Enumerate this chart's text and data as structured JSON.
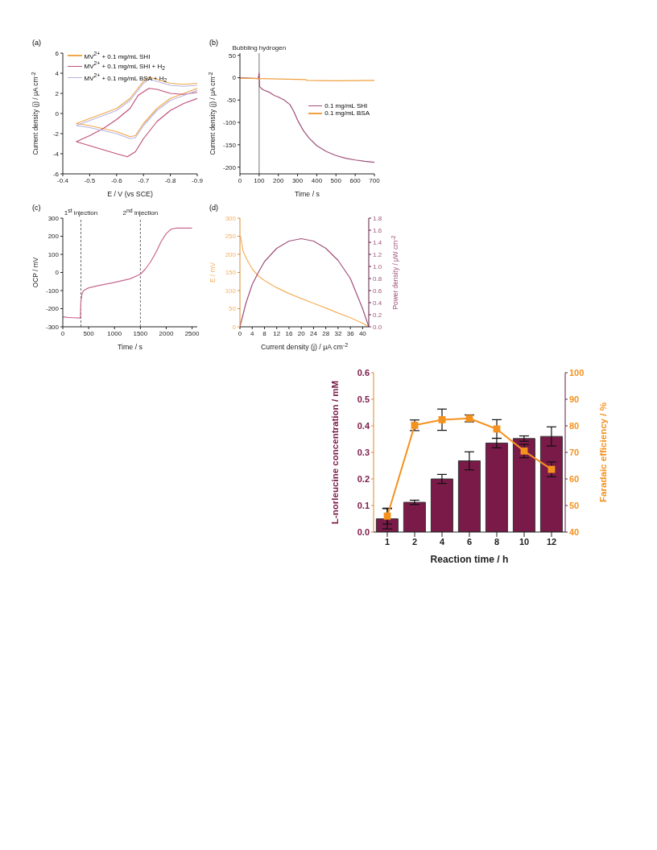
{
  "chart_data": [
    {
      "type": "line",
      "title": "(a)",
      "xlabel": "E / V (vs SCE)",
      "ylabel": "Current density (j) / μA cm$^{-2}$",
      "xlim": [
        -0.4,
        -0.9
      ],
      "xticks": [
        -0.4,
        -0.5,
        -0.6,
        -0.7,
        -0.8,
        -0.9
      ],
      "ylim": [
        -6,
        6
      ],
      "yticks": [
        -6,
        -4,
        -2,
        0,
        2,
        4,
        6
      ],
      "legend": "top left",
      "marker": "none",
      "line_style": "solid",
      "series": [
        {
          "name": "MV$^{2+}$ + 0.1 mg/mL SHI",
          "color": "#f0a848",
          "x": [
            -0.45,
            -0.5,
            -0.55,
            -0.6,
            -0.65,
            -0.7,
            -0.72,
            -0.75,
            -0.8,
            -0.85,
            -0.9
          ],
          "values": [
            -1.0,
            -0.5,
            0,
            0.5,
            1.5,
            3.2,
            3.6,
            3.4,
            3.0,
            2.9,
            3.0
          ]
        },
        {
          "color": "#f0a848",
          "x": [
            -0.9,
            -0.85,
            -0.8,
            -0.75,
            -0.7,
            -0.67,
            -0.65,
            -0.6,
            -0.55,
            -0.5,
            -0.45
          ],
          "values": [
            2.5,
            2.0,
            1.5,
            0.5,
            -1.0,
            -2.2,
            -2.3,
            -1.8,
            -1.5,
            -1.2,
            -1.0
          ]
        },
        {
          "name": "MV$^{2+}$ + 0.1 mg/mL SHI + H$_{2}$",
          "color": "#c0507a",
          "x": [
            -0.45,
            -0.5,
            -0.55,
            -0.6,
            -0.65,
            -0.68,
            -0.72,
            -0.75,
            -0.8,
            -0.85,
            -0.9
          ],
          "values": [
            -2.8,
            -2.2,
            -1.5,
            -0.6,
            0.5,
            1.8,
            2.5,
            2.4,
            2.0,
            1.9,
            2.1
          ]
        },
        {
          "color": "#c0507a",
          "x": [
            -0.9,
            -0.85,
            -0.8,
            -0.75,
            -0.7,
            -0.67,
            -0.64,
            -0.6,
            -0.55,
            -0.5,
            -0.45
          ],
          "values": [
            1.5,
            1.0,
            0.3,
            -0.8,
            -2.5,
            -3.8,
            -4.3,
            -4.0,
            -3.6,
            -3.2,
            -2.8
          ]
        },
        {
          "name": "MV$^{2+}$ + 0.1 mg/mL BSA + H$_{2}$",
          "color": "#b8b4e0",
          "x": [
            -0.45,
            -0.5,
            -0.55,
            -0.6,
            -0.65,
            -0.7,
            -0.72,
            -0.75,
            -0.8,
            -0.85,
            -0.9
          ],
          "values": [
            -1.2,
            -0.7,
            -0.2,
            0.3,
            1.3,
            3.0,
            3.4,
            3.2,
            2.8,
            2.7,
            2.8
          ]
        },
        {
          "color": "#b8b4e0",
          "x": [
            -0.9,
            -0.85,
            -0.8,
            -0.75,
            -0.7,
            -0.67,
            -0.65,
            -0.6,
            -0.55,
            -0.5,
            -0.45
          ],
          "values": [
            2.3,
            1.8,
            1.3,
            0.3,
            -1.2,
            -2.4,
            -2.5,
            -2.0,
            -1.7,
            -1.4,
            -1.2
          ]
        }
      ]
    },
    {
      "type": "line",
      "title": "(b)",
      "xlabel": "Time / s",
      "ylabel": "Current density (j) / μA cm$^{-2}$",
      "xlim": [
        0,
        700
      ],
      "xticks": [
        0,
        100,
        200,
        300,
        400,
        500,
        600,
        700
      ],
      "ylim": [
        -215,
        55
      ],
      "yticks": [
        -200,
        -150,
        -100,
        -50,
        0,
        50
      ],
      "legend": "right",
      "marker": "none",
      "line_style": "solid",
      "ref_lines": [
        {
          "axis": "x",
          "value": 100,
          "label": "Bubbling hydrogen",
          "color": "#555555",
          "line_style": "solid"
        }
      ],
      "series": [
        {
          "name": "0.1 mg/mL SHI",
          "color": "#a0507a",
          "x": [
            0,
            50,
            95,
            100,
            102,
            120,
            150,
            180,
            200,
            230,
            260,
            280,
            300,
            330,
            360,
            400,
            450,
            500,
            550,
            600,
            650,
            700
          ],
          "values": [
            0,
            -1,
            -2,
            10,
            -20,
            -27,
            -32,
            -40,
            -43,
            -50,
            -60,
            -75,
            -95,
            -118,
            -135,
            -152,
            -165,
            -174,
            -180,
            -184,
            -187,
            -189
          ]
        },
        {
          "name": "0.1 mg/mL BSA",
          "color": "#f0a040",
          "x": [
            0,
            100,
            200,
            340,
            350,
            500,
            700
          ],
          "values": [
            -1,
            -2,
            -3,
            -4,
            -6,
            -7,
            -6
          ]
        }
      ]
    },
    {
      "type": "line",
      "title": "(c)",
      "xlabel": "Time / s",
      "ylabel": "OCP / mV",
      "xlim": [
        0,
        2600
      ],
      "xticks": [
        0,
        500,
        1000,
        1500,
        2000,
        2500
      ],
      "ylim": [
        -300,
        300
      ],
      "yticks": [
        -300,
        -200,
        -100,
        0,
        100,
        200,
        300
      ],
      "legend": false,
      "marker": "none",
      "line_style": "solid",
      "ref_lines": [
        {
          "axis": "x",
          "value": 350,
          "label": "1$^{st}$ injection",
          "color": "#444444",
          "line_style": "dashed"
        },
        {
          "axis": "x",
          "value": 1500,
          "label": "2$^{nd}$ injection",
          "color": "#444444",
          "line_style": "dashed"
        }
      ],
      "series": [
        {
          "color": "#c86890",
          "x": [
            0,
            100,
            200,
            340,
            350,
            370,
            400,
            500,
            700,
            1000,
            1300,
            1500,
            1600,
            1700,
            1800,
            1900,
            2000,
            2100,
            2200,
            2500
          ],
          "values": [
            -245,
            -248,
            -250,
            -252,
            -160,
            -120,
            -100,
            -85,
            -72,
            -55,
            -35,
            -10,
            20,
            60,
            110,
            170,
            215,
            240,
            245,
            245
          ]
        }
      ]
    },
    {
      "type": "line",
      "title": "(d)",
      "xlabel": "Current density (j) / μA cm$^{-2}$",
      "ylabel": "E / mV",
      "y2label": "Power density / μW cm$^{-2}$",
      "xlim": [
        0,
        42
      ],
      "xticks": [
        0,
        4,
        8,
        12,
        16,
        20,
        24,
        28,
        32,
        36,
        40
      ],
      "ylim": [
        0,
        300
      ],
      "yticks": [
        0,
        50,
        100,
        150,
        200,
        250,
        300
      ],
      "y2lim": [
        0,
        1.8
      ],
      "y2ticks": [
        {
          "value": 0,
          "label": "0.0"
        },
        0.2,
        0.4,
        0.6,
        0.8,
        {
          "value": 1,
          "label": "1.0"
        },
        1.2,
        1.4,
        1.6,
        1.8
      ],
      "legend": false,
      "marker": "none",
      "line_style": "solid",
      "series": [
        {
          "color": "#f5b060",
          "x": [
            0.2,
            1,
            2,
            4,
            6,
            8,
            12,
            16,
            20,
            24,
            28,
            32,
            36,
            40,
            42
          ],
          "values": [
            250,
            210,
            190,
            160,
            140,
            128,
            108,
            92,
            78,
            65,
            52,
            38,
            25,
            10,
            0
          ]
        },
        {
          "color": "#a0507a",
          "axis": "y2",
          "x": [
            0,
            2,
            4,
            6,
            8,
            12,
            16,
            20,
            24,
            28,
            32,
            36,
            40,
            42
          ],
          "values": [
            0,
            0.4,
            0.7,
            0.9,
            1.08,
            1.3,
            1.42,
            1.46,
            1.42,
            1.3,
            1.1,
            0.8,
            0.3,
            0
          ]
        }
      ]
    },
    {
      "type": "bar",
      "xlabel": "Reaction time / h",
      "ylabel": "L-norleucine concentration / mM",
      "y2label": "Faradaic efficiency / %",
      "categories": [
        "1",
        "2",
        "4",
        "6",
        "8",
        "10",
        "12"
      ],
      "ylim": [
        0,
        0.6
      ],
      "yticks": [
        {
          "value": 0,
          "label": "0.0"
        },
        0.1,
        0.2,
        0.3,
        0.4,
        0.5,
        0.6
      ],
      "y2lim": [
        40,
        100
      ],
      "y2ticks": [
        40,
        50,
        60,
        70,
        80,
        90,
        100
      ],
      "legend": false,
      "series": [
        {
          "color": "#7a1a48",
          "values": [
            0.05,
            0.112,
            0.2,
            0.268,
            0.335,
            0.352,
            0.36
          ],
          "errors": [
            0.038,
            0.008,
            0.017,
            0.034,
            0.018,
            0.01,
            0.036
          ]
        },
        {
          "type": "line",
          "axis": "y2",
          "color": "#f5921e",
          "marker": "square",
          "values": [
            46,
            80.2,
            82.3,
            82.8,
            78.8,
            70.5,
            63.6
          ],
          "errors": [
            3,
            2,
            4,
            1.3,
            3.5,
            2.5,
            2.8
          ]
        }
      ]
    }
  ]
}
